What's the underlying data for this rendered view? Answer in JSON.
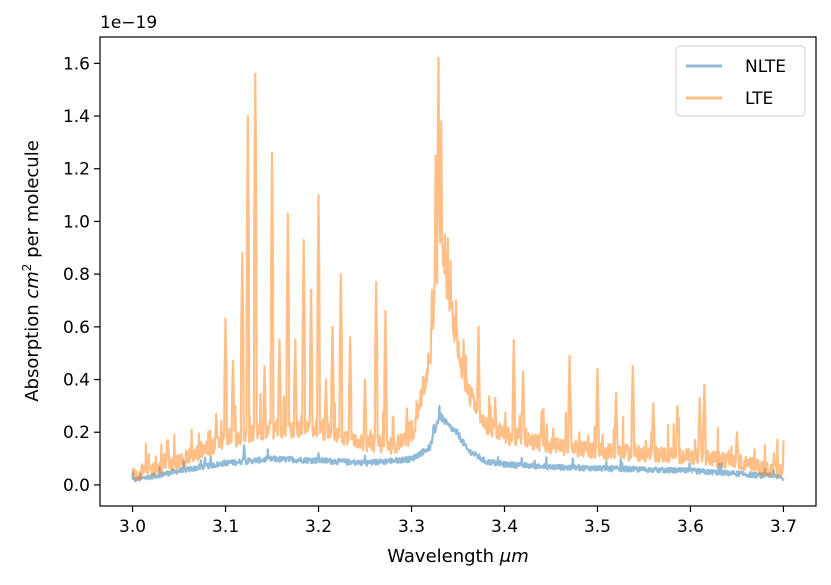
{
  "chart_data": {
    "type": "line",
    "title": "",
    "xlabel": "Wavelength",
    "xlabel_unit": "μm",
    "ylabel": "Absorption",
    "ylabel_unit": "cm",
    "ylabel_exp": "2",
    "ylabel_suffix": "per molecule",
    "offset_label": "1e−19",
    "xlim": [
      2.965,
      3.735
    ],
    "ylim": [
      -0.08,
      1.7
    ],
    "xticks": [
      3.0,
      3.1,
      3.2,
      3.3,
      3.4,
      3.5,
      3.6,
      3.7
    ],
    "xtick_labels": [
      "3.0",
      "3.1",
      "3.2",
      "3.3",
      "3.4",
      "3.5",
      "3.6",
      "3.7"
    ],
    "yticks": [
      0.0,
      0.2,
      0.4,
      0.6,
      0.8,
      1.0,
      1.2,
      1.4,
      1.6
    ],
    "ytick_labels": [
      "0.0",
      "0.2",
      "0.4",
      "0.6",
      "0.8",
      "1.0",
      "1.2",
      "1.4",
      "1.6"
    ],
    "legend_position": "top-right",
    "series": [
      {
        "name": "NLTE",
        "color": "#1f77b4",
        "opacity": 0.5,
        "x": [
          3.0,
          3.05,
          3.1,
          3.15,
          3.2,
          3.25,
          3.3,
          3.32,
          3.33,
          3.34,
          3.35,
          3.36,
          3.38,
          3.4,
          3.45,
          3.5,
          3.55,
          3.6,
          3.65,
          3.7
        ],
        "y": [
          0.015,
          0.05,
          0.08,
          0.095,
          0.09,
          0.08,
          0.095,
          0.14,
          0.26,
          0.22,
          0.19,
          0.13,
          0.085,
          0.075,
          0.065,
          0.06,
          0.055,
          0.05,
          0.04,
          0.025
        ],
        "peaks": [
          [
            3.33,
            0.3
          ],
          [
            3.335,
            0.24
          ],
          [
            3.345,
            0.2
          ],
          [
            3.12,
            0.15
          ],
          [
            3.2,
            0.12
          ],
          [
            3.25,
            0.11
          ]
        ]
      },
      {
        "name": "LTE",
        "color": "#ff7f0e",
        "opacity": 0.5,
        "x": [
          3.0,
          3.05,
          3.1,
          3.15,
          3.2,
          3.25,
          3.28,
          3.3,
          3.32,
          3.33,
          3.34,
          3.35,
          3.36,
          3.38,
          3.4,
          3.45,
          3.5,
          3.55,
          3.6,
          3.65,
          3.7
        ],
        "y": [
          0.03,
          0.08,
          0.16,
          0.2,
          0.2,
          0.15,
          0.14,
          0.17,
          0.45,
          0.9,
          0.7,
          0.5,
          0.35,
          0.22,
          0.18,
          0.14,
          0.12,
          0.11,
          0.1,
          0.08,
          0.04
        ],
        "peaks": [
          [
            3.038,
            0.17
          ],
          [
            3.09,
            0.27
          ],
          [
            3.1,
            0.63
          ],
          [
            3.108,
            0.47
          ],
          [
            3.118,
            0.88
          ],
          [
            3.124,
            1.4
          ],
          [
            3.132,
            1.56
          ],
          [
            3.142,
            0.45
          ],
          [
            3.15,
            1.26
          ],
          [
            3.158,
            0.55
          ],
          [
            3.167,
            1.03
          ],
          [
            3.175,
            0.55
          ],
          [
            3.184,
            0.93
          ],
          [
            3.192,
            0.74
          ],
          [
            3.2,
            1.1
          ],
          [
            3.208,
            0.4
          ],
          [
            3.215,
            0.6
          ],
          [
            3.224,
            0.8
          ],
          [
            3.234,
            0.56
          ],
          [
            3.25,
            0.4
          ],
          [
            3.262,
            0.77
          ],
          [
            3.272,
            0.66
          ],
          [
            3.295,
            0.29
          ],
          [
            3.31,
            0.36
          ],
          [
            3.322,
            0.74
          ],
          [
            3.326,
            1.25
          ],
          [
            3.329,
            1.62
          ],
          [
            3.332,
            1.38
          ],
          [
            3.336,
            0.95
          ],
          [
            3.342,
            0.85
          ],
          [
            3.348,
            0.7
          ],
          [
            3.356,
            0.55
          ],
          [
            3.372,
            0.6
          ],
          [
            3.385,
            0.3
          ],
          [
            3.39,
            0.33
          ],
          [
            3.41,
            0.55
          ],
          [
            3.42,
            0.43
          ],
          [
            3.44,
            0.28
          ],
          [
            3.47,
            0.49
          ],
          [
            3.5,
            0.44
          ],
          [
            3.52,
            0.35
          ],
          [
            3.538,
            0.45
          ],
          [
            3.56,
            0.31
          ],
          [
            3.586,
            0.3
          ],
          [
            3.61,
            0.33
          ],
          [
            3.615,
            0.38
          ],
          [
            3.65,
            0.2
          ],
          [
            3.69,
            0.12
          ]
        ]
      }
    ]
  }
}
